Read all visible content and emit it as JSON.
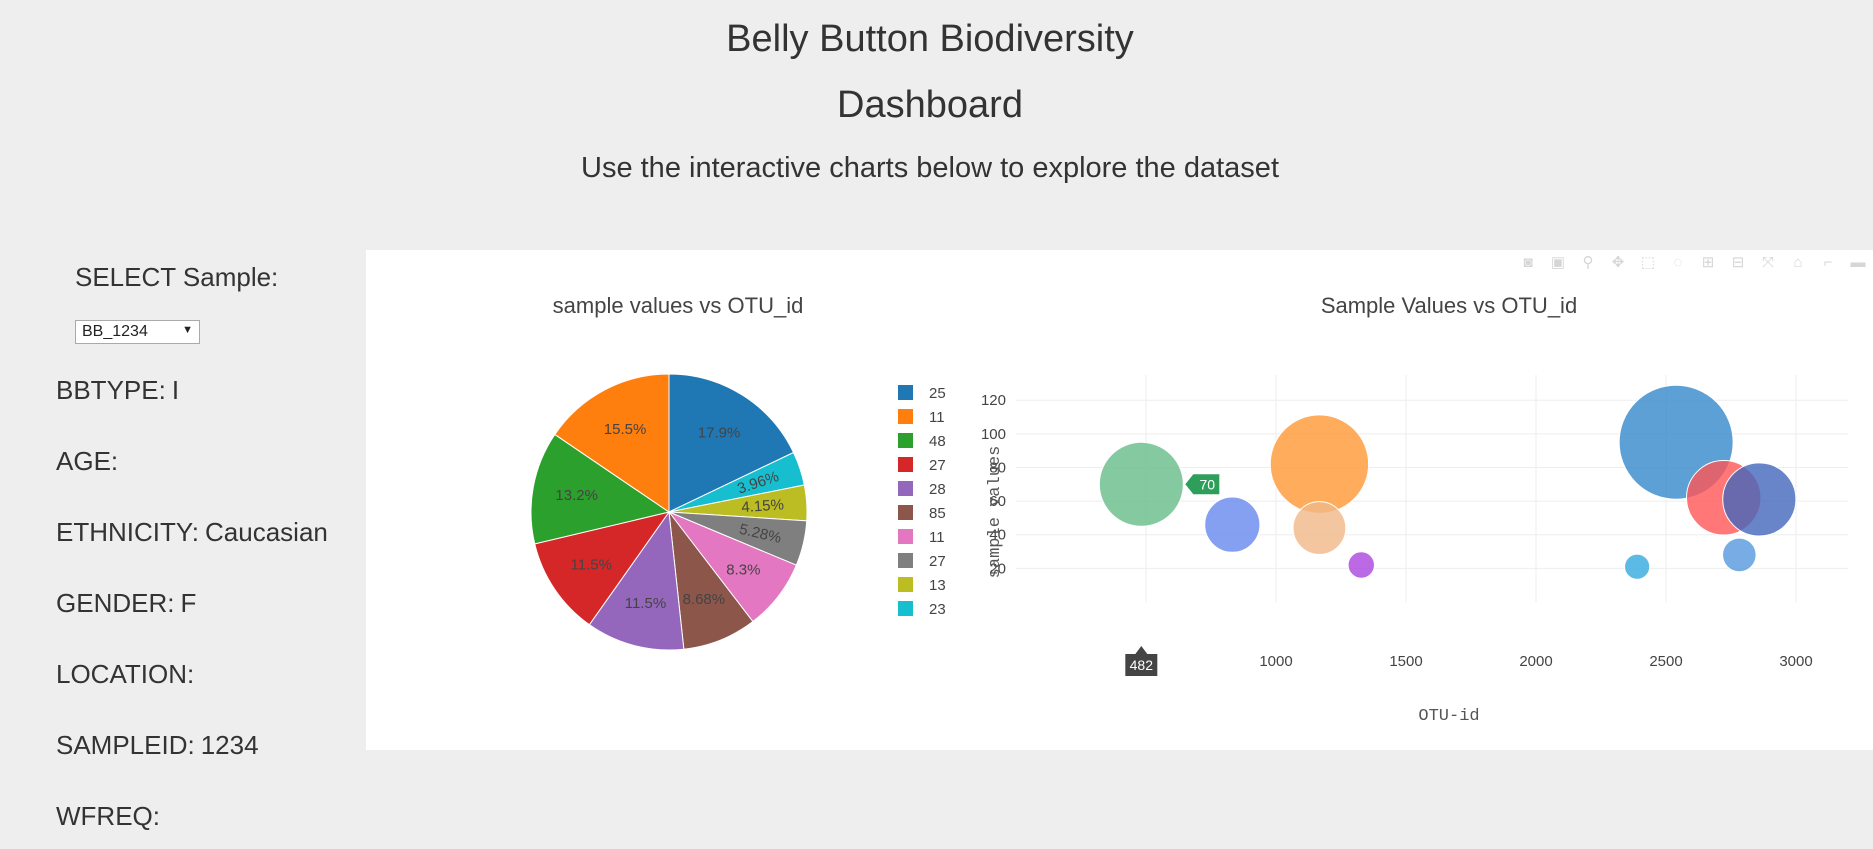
{
  "header": {
    "title_line1": "Belly Button Biodiversity",
    "title_line2": "Dashboard",
    "subtitle": "Use the interactive charts below to explore the dataset"
  },
  "sidebar": {
    "select_label": "SELECT Sample:",
    "selected_sample": "BB_1234",
    "metadata": [
      {
        "key": "BBTYPE:",
        "value": "I"
      },
      {
        "key": "AGE:",
        "value": ""
      },
      {
        "key": "ETHNICITY:",
        "value": "Caucasian"
      },
      {
        "key": "GENDER:",
        "value": "F"
      },
      {
        "key": "LOCATION:",
        "value": ""
      },
      {
        "key": "SAMPLEID:",
        "value": "1234"
      },
      {
        "key": "WFREQ:",
        "value": ""
      }
    ]
  },
  "modebar_icons": [
    "camera-icon",
    "save-icon",
    "zoom-icon",
    "pan-icon",
    "box-select-icon",
    "lasso-icon",
    "zoom-in-icon",
    "zoom-out-icon",
    "autoscale-icon",
    "home-icon",
    "spike-icon",
    "compare-icon"
  ],
  "chart_data": [
    {
      "type": "pie",
      "title": "sample values vs OTU_id",
      "labels": [
        "25",
        "11",
        "48",
        "27",
        "28",
        "85",
        "11",
        "27",
        "13",
        "23"
      ],
      "percent_labels": [
        "17.9%",
        "15.5%",
        "13.2%",
        "11.5%",
        "11.5%",
        "8.68%",
        "8.3%",
        "5.28%",
        "4.15%",
        "3.96%"
      ],
      "percents": [
        17.9,
        15.5,
        13.2,
        11.5,
        11.5,
        8.68,
        8.3,
        5.28,
        4.15,
        3.96
      ],
      "slice_order_clockwise": [
        "25",
        "23",
        "13",
        "27",
        "11",
        "85",
        "28",
        "27",
        "48",
        "11"
      ],
      "colors": [
        "#1f77b4",
        "#ff7f0e",
        "#2ca02c",
        "#d62728",
        "#9467bd",
        "#8c564b",
        "#e377c2",
        "#7f7f7f",
        "#bcbd22",
        "#17becf"
      ],
      "legend": "right"
    },
    {
      "type": "scatter",
      "title": "Sample Values vs OTU_id",
      "xlabel": "OTU-id",
      "ylabel": "sample values",
      "xlim": [
        0,
        3200
      ],
      "ylim": [
        0,
        135
      ],
      "xticks": [
        "1000",
        "1500",
        "2000",
        "2500",
        "3000"
      ],
      "xtick_values": [
        1000,
        1500,
        2000,
        2500,
        3000
      ],
      "yticks": [
        "20",
        "40",
        "60",
        "80",
        "100",
        "120"
      ],
      "ytick_values": [
        20,
        40,
        60,
        80,
        100,
        120
      ],
      "grid": true,
      "points": [
        {
          "x": 482,
          "y": 70,
          "size": 70,
          "color": "#66bb88"
        },
        {
          "x": 1167,
          "y": 82,
          "size": 82,
          "color": "#ff9933"
        },
        {
          "x": 2539,
          "y": 95,
          "size": 95,
          "color": "#3388cc"
        },
        {
          "x": 2722,
          "y": 62,
          "size": 62,
          "color": "#ff5555"
        },
        {
          "x": 2859,
          "y": 61,
          "size": 61,
          "color": "#4466bb"
        },
        {
          "x": 832,
          "y": 46,
          "size": 46,
          "color": "#6688ee"
        },
        {
          "x": 1167,
          "y": 44,
          "size": 44,
          "color": "#f0b888"
        },
        {
          "x": 1328,
          "y": 22,
          "size": 22,
          "color": "#aa44dd"
        },
        {
          "x": 2389,
          "y": 21,
          "size": 21,
          "color": "#33aadd"
        },
        {
          "x": 2782,
          "y": 28,
          "size": 28,
          "color": "#5599dd"
        }
      ],
      "hover": {
        "x_label": "482",
        "y_label": "70"
      }
    }
  ]
}
